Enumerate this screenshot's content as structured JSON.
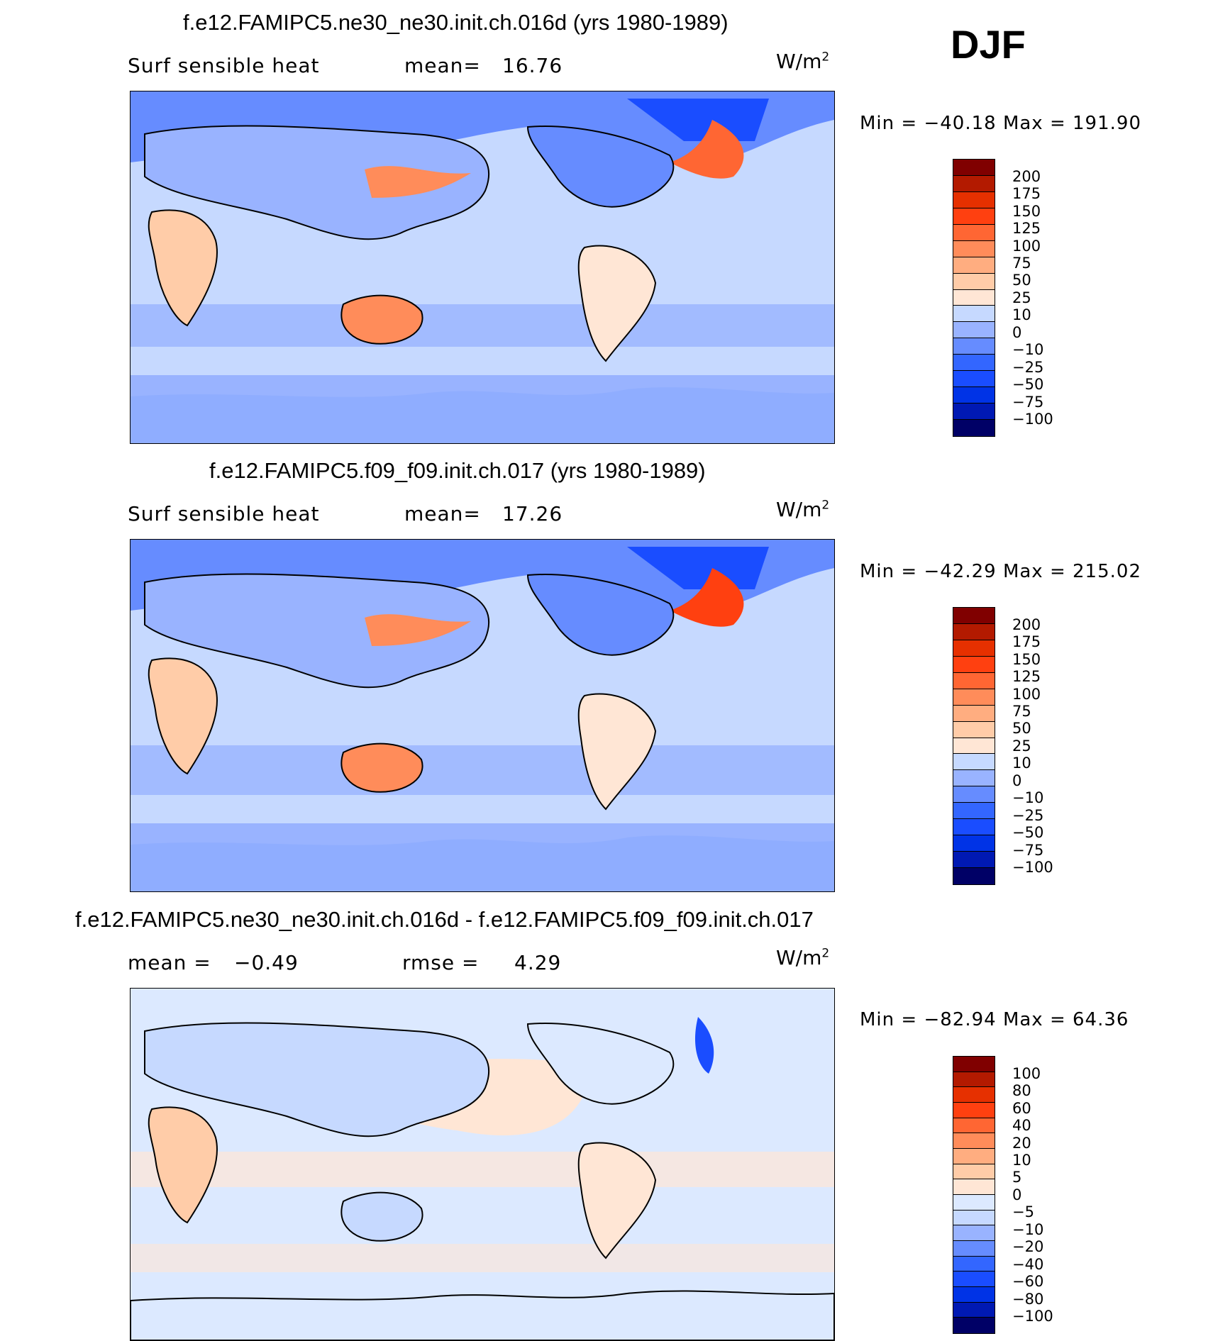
{
  "season": "DJF",
  "colors": {
    "land_line": "#000000",
    "abs_scale": [
      "#000066",
      "#0019b3",
      "#0033e6",
      "#1a4dff",
      "#3366ff",
      "#668cff",
      "#99b3ff",
      "#c6d9ff",
      "#ffe6d5",
      "#ffcca8",
      "#ffad80",
      "#ff8c5a",
      "#ff6633",
      "#ff4010",
      "#e63000",
      "#b31a00",
      "#800000"
    ],
    "diff_scale": [
      "#000066",
      "#0019b3",
      "#0033e6",
      "#1a4dff",
      "#3366ff",
      "#668cff",
      "#99b3ff",
      "#c6d9ff",
      "#dce9ff",
      "#ffe6d5",
      "#ffcca8",
      "#ffad80",
      "#ff8c5a",
      "#ff6633",
      "#ff4010",
      "#e63000",
      "#b31a00",
      "#800000"
    ]
  },
  "panels": [
    {
      "id": "panel-1",
      "title": "f.e12.FAMIPC5.ne30_ne30.init.ch.016d (yrs 1980-1989)",
      "variable": "Surf sensible heat",
      "stat_label": "mean=",
      "stat_value": "16.76",
      "units": "W/m",
      "units_sup": "2",
      "min_label": "Min =",
      "min_value": "−40.18",
      "max_label": "Max =",
      "max_value": "191.90",
      "colorbar_labels": [
        "200",
        "175",
        "150",
        "125",
        "100",
        "75",
        "50",
        "25",
        "10",
        "0",
        "−10",
        "−25",
        "−50",
        "−75",
        "−100"
      ]
    },
    {
      "id": "panel-2",
      "title": "f.e12.FAMIPC5.f09_f09.init.ch.017 (yrs 1980-1989)",
      "variable": "Surf sensible heat",
      "stat_label": "mean=",
      "stat_value": "17.26",
      "units": "W/m",
      "units_sup": "2",
      "min_label": "Min =",
      "min_value": "−42.29",
      "max_label": "Max =",
      "max_value": "215.02",
      "colorbar_labels": [
        "200",
        "175",
        "150",
        "125",
        "100",
        "75",
        "50",
        "25",
        "10",
        "0",
        "−10",
        "−25",
        "−50",
        "−75",
        "−100"
      ]
    },
    {
      "id": "panel-3",
      "title": "f.e12.FAMIPC5.ne30_ne30.init.ch.016d - f.e12.FAMIPC5.f09_f09.init.ch.017",
      "mean_label": "mean =",
      "mean_value": "−0.49",
      "rmse_label": "rmse =",
      "rmse_value": "4.29",
      "units": "W/m",
      "units_sup": "2",
      "min_label": "Min =",
      "min_value": "−82.94",
      "max_label": "Max =",
      "max_value": "64.36",
      "colorbar_labels": [
        "100",
        "80",
        "60",
        "40",
        "20",
        "10",
        "5",
        "0",
        "−5",
        "−10",
        "−20",
        "−40",
        "−60",
        "−80",
        "−100"
      ]
    }
  ]
}
